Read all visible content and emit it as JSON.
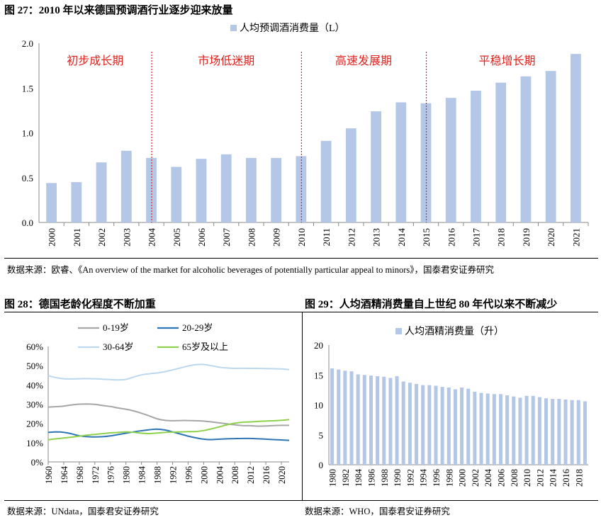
{
  "fig27": {
    "title": "图 27：2010 年以来德国预调酒行业逐步迎来放量",
    "source": "数据来源：欧睿、《An overview of the market for alcoholic beverages of potentially particular appeal to minors》，国泰君安证券研究",
    "phases": [
      "初步成长期",
      "市场低迷期",
      "高速发展期",
      "平稳增长期"
    ],
    "phase_color": "#e0221e",
    "divider_after": [
      "2004",
      "2010",
      "2015"
    ]
  },
  "fig28": {
    "title": "图 28：德国老龄化程度不断加重",
    "source": "数据来源：UNdata，国泰君安证券研究"
  },
  "fig29": {
    "title": "图 29：人均酒精消费量自上世纪 80 年代以来不断减少",
    "source": "数据来源：WHO，国泰君安证券研究"
  },
  "colors": {
    "bar": "#b4c7e7",
    "axis": "#888888"
  },
  "chart_data": [
    {
      "id": "fig27",
      "type": "bar",
      "legend": [
        "人均预调酒消费量（L）"
      ],
      "categories": [
        "2000",
        "2001",
        "2002",
        "2003",
        "2004",
        "2005",
        "2006",
        "2007",
        "2008",
        "2009",
        "2010",
        "2011",
        "2012",
        "2013",
        "2014",
        "2015",
        "2016",
        "2017",
        "2018",
        "2019",
        "2020",
        "2021"
      ],
      "values": [
        0.44,
        0.45,
        0.67,
        0.8,
        0.72,
        0.62,
        0.71,
        0.76,
        0.72,
        0.72,
        0.74,
        0.91,
        1.05,
        1.24,
        1.34,
        1.33,
        1.39,
        1.47,
        1.56,
        1.63,
        1.69,
        1.88
      ],
      "yticks": [
        "0.0",
        "0.5",
        "1.0",
        "1.5",
        "2.0"
      ],
      "ylim": [
        0,
        2.0
      ]
    },
    {
      "id": "fig28",
      "type": "line",
      "x": [
        1960,
        1962,
        1964,
        1966,
        1968,
        1970,
        1972,
        1974,
        1976,
        1978,
        1980,
        1982,
        1984,
        1986,
        1988,
        1990,
        1992,
        1994,
        1996,
        1998,
        2000,
        2002,
        2004,
        2006,
        2008,
        2010,
        2012,
        2014,
        2016,
        2018,
        2020,
        2022
      ],
      "xticks": [
        "1960",
        "1964",
        "1968",
        "1972",
        "1976",
        "1980",
        "1984",
        "1988",
        "1992",
        "1996",
        "2000",
        "2004",
        "2008",
        "2012",
        "2016",
        "2020"
      ],
      "yticks": [
        "0%",
        "10%",
        "20%",
        "30%",
        "40%",
        "50%",
        "60%"
      ],
      "ylim": [
        0,
        60
      ],
      "series": [
        {
          "name": "0-19岁",
          "color": "#a6a6a6",
          "values": [
            28.5,
            28.7,
            29.0,
            29.6,
            30.0,
            30.1,
            29.9,
            29.3,
            28.8,
            28.0,
            27.4,
            26.5,
            25.3,
            23.9,
            22.4,
            21.6,
            21.4,
            21.5,
            21.5,
            21.4,
            21.2,
            20.8,
            20.3,
            19.8,
            19.3,
            18.9,
            18.8,
            18.6,
            18.7,
            18.9,
            19.0,
            19.0
          ]
        },
        {
          "name": "20-29岁",
          "color": "#2e75b6",
          "values": [
            15.3,
            15.6,
            15.4,
            14.6,
            13.6,
            13.1,
            13.0,
            13.1,
            13.5,
            14.2,
            14.9,
            15.6,
            16.2,
            16.7,
            17.0,
            16.6,
            15.6,
            14.5,
            13.4,
            12.5,
            11.8,
            11.6,
            11.8,
            12.0,
            12.1,
            12.2,
            12.2,
            12.0,
            11.8,
            11.6,
            11.4,
            11.2
          ]
        },
        {
          "name": "30-64岁",
          "color": "#bdd7ee",
          "values": [
            44.8,
            43.8,
            43.2,
            43.1,
            43.2,
            43.3,
            43.2,
            43.0,
            42.8,
            42.6,
            42.9,
            44.1,
            45.2,
            45.8,
            46.2,
            46.9,
            47.8,
            48.8,
            49.8,
            50.5,
            50.6,
            50.0,
            49.2,
            48.8,
            48.6,
            48.7,
            48.6,
            48.6,
            48.5,
            48.4,
            48.3,
            48.0
          ]
        },
        {
          "name": "65岁及以上",
          "color": "#8fd14f",
          "values": [
            11.5,
            12.0,
            12.4,
            12.9,
            13.4,
            13.9,
            14.3,
            14.7,
            15.1,
            15.3,
            15.6,
            15.4,
            14.9,
            14.7,
            15.0,
            15.3,
            15.5,
            15.6,
            15.7,
            15.8,
            16.3,
            17.2,
            18.2,
            19.3,
            20.1,
            20.6,
            20.8,
            21.0,
            21.2,
            21.4,
            21.6,
            22.0
          ]
        }
      ]
    },
    {
      "id": "fig29",
      "type": "bar",
      "legend": [
        "人均酒精消费量（升）"
      ],
      "categories": [
        "1980",
        "1981",
        "1982",
        "1983",
        "1984",
        "1985",
        "1986",
        "1987",
        "1988",
        "1989",
        "1990",
        "1991",
        "1992",
        "1993",
        "1994",
        "1995",
        "1996",
        "1997",
        "1998",
        "1999",
        "2000",
        "2001",
        "2002",
        "2003",
        "2004",
        "2005",
        "2006",
        "2007",
        "2008",
        "2009",
        "2010",
        "2011",
        "2012",
        "2013",
        "2014",
        "2015",
        "2016",
        "2017",
        "2018",
        "2019"
      ],
      "xticks": [
        "1980",
        "1982",
        "1984",
        "1986",
        "1988",
        "1990",
        "1992",
        "1994",
        "1996",
        "1998",
        "2000",
        "2002",
        "2004",
        "2006",
        "2008",
        "2010",
        "2012",
        "2014",
        "2016",
        "2018"
      ],
      "values": [
        16.1,
        15.9,
        15.7,
        15.6,
        15.1,
        15.0,
        14.9,
        14.8,
        14.7,
        14.5,
        14.8,
        13.9,
        13.7,
        13.5,
        13.3,
        13.3,
        13.2,
        13.0,
        12.9,
        12.6,
        12.9,
        12.7,
        12.2,
        12.0,
        11.9,
        11.8,
        11.8,
        11.6,
        11.4,
        11.2,
        11.5,
        11.5,
        11.3,
        11.1,
        11.0,
        11.0,
        10.9,
        10.8,
        10.8,
        10.6
      ],
      "yticks": [
        "0",
        "5",
        "10",
        "15",
        "20"
      ],
      "ylim": [
        0,
        20
      ]
    }
  ]
}
